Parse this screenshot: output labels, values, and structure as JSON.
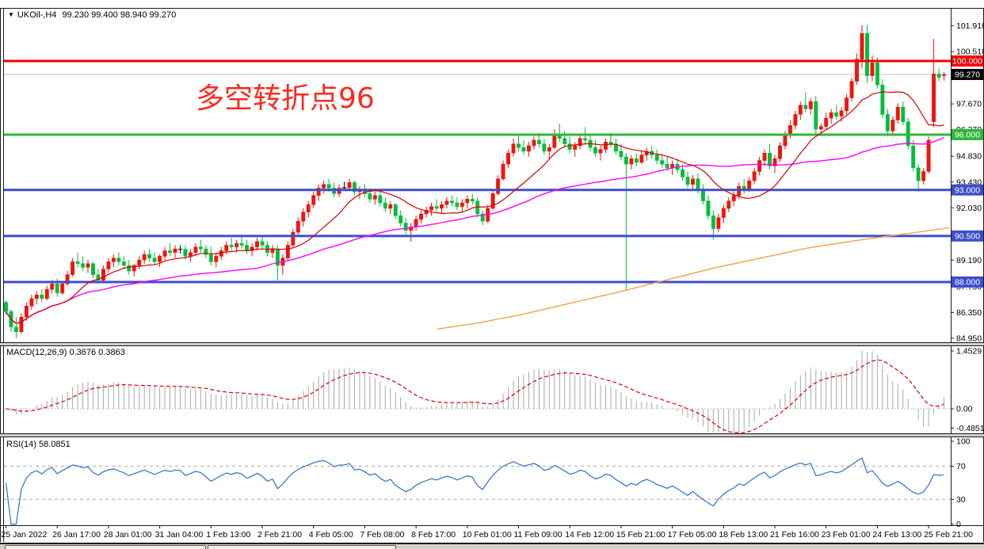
{
  "window": {
    "symbol_period": "UKOil-,H4",
    "ohlc": "99.230 99.400 98.940 99.270"
  },
  "annotation": {
    "text": "多空转折点96",
    "color": "#fb2a1c"
  },
  "colors": {
    "up": "#f2130e",
    "down": "#00be3c",
    "doji": "#111111",
    "hline_red": "#f50000",
    "hline_green": "#2fb83a",
    "hline_blue": "#3d4ecc",
    "current_line": "#c0c0c0",
    "current_badge_bg": "#000000",
    "ma_fast": "#d40000",
    "ma_slow": "#ff00ff",
    "ma_long": "#f2a24c",
    "macd_hist": "#a8a8a8",
    "macd_signal": "#e00000",
    "rsi_line": "#3c78d2",
    "level_dash": "#ababab",
    "axis_text": "#000000"
  },
  "chart_data": {
    "type": "candlestick",
    "symbol": "UKOil-",
    "timeframe": "H4",
    "title": "UKOil-,H4 99.230 99.400 98.940 99.270",
    "x_labels": [
      "25 Jan 2022",
      "26 Jan 17:00",
      "28 Jan 01:00",
      "31 Jan 04:00",
      "1 Feb 13:00",
      "2 Feb 21:00",
      "4 Feb 05:00",
      "7 Feb 08:00",
      "8 Feb 17:00",
      "10 Feb 01:00",
      "11 Feb 09:00",
      "14 Feb 12:00",
      "15 Feb 21:00",
      "17 Feb 05:00",
      "18 Feb 13:00",
      "21 Feb 16:00",
      "23 Feb 01:00",
      "24 Feb 13:00",
      "25 Feb 21:00"
    ],
    "candles_per_label": 10,
    "price_axis": {
      "ticks": [
        "101.910",
        "100.510",
        "99.110",
        "97.670",
        "96.270",
        "94.830",
        "93.430",
        "92.030",
        "90.610",
        "89.190",
        "87.750",
        "86.350",
        "84.950"
      ],
      "current_price": {
        "value": 99.27,
        "label": "99.270"
      }
    },
    "h_lines": [
      {
        "value": 100.0,
        "label": "100.000",
        "color_key": "hline_red"
      },
      {
        "value": 96.0,
        "label": "96.000",
        "color_key": "hline_green"
      },
      {
        "value": 93.0,
        "label": "93.000",
        "color_key": "hline_blue"
      },
      {
        "value": 90.5,
        "label": "90.500",
        "color_key": "hline_blue"
      },
      {
        "value": 88.0,
        "label": "88.000",
        "color_key": "hline_blue"
      }
    ],
    "moving_averages": {
      "fast": {
        "period": 13,
        "color_key": "ma_fast"
      },
      "slow": {
        "period": 50,
        "color_key": "ma_slow"
      },
      "long_points": [
        [
          552,
          85.45
        ],
        [
          600,
          85.75
        ],
        [
          660,
          86.25
        ],
        [
          720,
          86.85
        ],
        [
          780,
          87.45
        ],
        [
          840,
          88.1
        ],
        [
          900,
          88.75
        ],
        [
          960,
          89.3
        ],
        [
          1020,
          89.85
        ],
        [
          1080,
          90.25
        ],
        [
          1140,
          90.6
        ],
        [
          1198,
          90.95
        ]
      ]
    },
    "candles": [
      [
        86.9,
        87.0,
        86.2,
        86.4
      ],
      [
        86.4,
        86.5,
        85.3,
        85.55
      ],
      [
        85.55,
        86.1,
        84.95,
        85.3
      ],
      [
        85.3,
        86.3,
        85.2,
        86.1
      ],
      [
        86.1,
        86.9,
        85.9,
        86.7
      ],
      [
        86.7,
        87.3,
        86.5,
        87.1
      ],
      [
        87.1,
        87.5,
        86.8,
        87.3
      ],
      [
        87.3,
        87.6,
        86.9,
        87.1
      ],
      [
        87.1,
        87.8,
        87.0,
        87.6
      ],
      [
        87.6,
        88.1,
        87.4,
        87.9
      ],
      [
        87.9,
        88.2,
        87.2,
        87.4
      ],
      [
        87.4,
        88.0,
        87.3,
        87.9
      ],
      [
        87.9,
        88.6,
        87.8,
        88.4
      ],
      [
        88.4,
        89.3,
        88.3,
        89.1
      ],
      [
        89.1,
        89.6,
        88.8,
        89.0
      ],
      [
        89.0,
        89.4,
        88.6,
        88.8
      ],
      [
        88.8,
        89.2,
        88.5,
        89.0
      ],
      [
        89.0,
        89.1,
        88.2,
        88.4
      ],
      [
        88.4,
        88.7,
        87.9,
        88.1
      ],
      [
        88.1,
        88.9,
        88.0,
        88.7
      ],
      [
        88.7,
        89.3,
        88.5,
        89.1
      ],
      [
        89.1,
        89.5,
        88.8,
        89.3
      ],
      [
        89.3,
        89.6,
        88.9,
        89.1
      ],
      [
        89.1,
        89.4,
        88.7,
        88.9
      ],
      [
        88.9,
        89.2,
        88.4,
        88.6
      ],
      [
        88.6,
        89.0,
        88.3,
        88.9
      ],
      [
        88.9,
        89.4,
        88.7,
        89.2
      ],
      [
        89.2,
        89.7,
        89.0,
        89.5
      ],
      [
        89.5,
        89.8,
        89.1,
        89.3
      ],
      [
        89.3,
        89.6,
        88.9,
        89.1
      ],
      [
        89.1,
        89.5,
        88.8,
        89.4
      ],
      [
        89.4,
        89.9,
        89.2,
        89.7
      ],
      [
        89.7,
        90.1,
        89.4,
        89.6
      ],
      [
        89.6,
        90.0,
        89.3,
        89.8
      ],
      [
        89.8,
        90.0,
        89.55,
        89.78
      ],
      [
        89.78,
        90.0,
        89.2,
        89.4
      ],
      [
        89.4,
        89.8,
        89.1,
        89.6
      ],
      [
        89.6,
        90.1,
        89.4,
        89.9
      ],
      [
        89.9,
        90.3,
        89.6,
        89.8
      ],
      [
        89.8,
        90.0,
        89.3,
        89.5
      ],
      [
        89.5,
        89.9,
        88.9,
        89.1
      ],
      [
        89.1,
        89.6,
        88.8,
        89.4
      ],
      [
        89.4,
        89.9,
        89.2,
        89.7
      ],
      [
        89.7,
        90.2,
        89.5,
        90.0
      ],
      [
        90.0,
        90.4,
        89.7,
        89.9
      ],
      [
        89.9,
        90.3,
        89.6,
        90.1
      ],
      [
        90.1,
        90.45,
        89.8,
        90.0
      ],
      [
        90.0,
        90.3,
        89.5,
        89.7
      ],
      [
        89.7,
        90.1,
        89.4,
        89.9
      ],
      [
        89.9,
        90.4,
        89.7,
        90.2
      ],
      [
        90.2,
        90.45,
        89.8,
        90.0
      ],
      [
        90.0,
        90.2,
        89.4,
        89.6
      ],
      [
        89.6,
        90.0,
        89.3,
        89.8
      ],
      [
        89.8,
        90.0,
        88.1,
        88.9
      ],
      [
        88.9,
        89.5,
        88.4,
        89.3
      ],
      [
        89.3,
        90.2,
        89.2,
        90.0
      ],
      [
        90.0,
        90.9,
        89.9,
        90.7
      ],
      [
        90.7,
        91.5,
        90.5,
        91.3
      ],
      [
        91.3,
        92.0,
        91.0,
        91.8
      ],
      [
        91.8,
        92.4,
        91.5,
        92.2
      ],
      [
        92.2,
        92.9,
        92.0,
        92.7
      ],
      [
        92.7,
        93.3,
        92.4,
        93.1
      ],
      [
        93.1,
        93.5,
        92.8,
        93.3
      ],
      [
        93.3,
        93.6,
        92.9,
        93.1
      ],
      [
        93.1,
        93.4,
        92.6,
        92.8
      ],
      [
        92.8,
        93.3,
        92.6,
        93.1
      ],
      [
        93.1,
        93.45,
        92.95,
        93.12
      ],
      [
        93.12,
        93.6,
        93.0,
        93.4
      ],
      [
        93.4,
        93.5,
        92.7,
        92.9
      ],
      [
        92.9,
        93.2,
        92.5,
        93.0
      ],
      [
        93.0,
        93.3,
        92.6,
        92.8
      ],
      [
        92.8,
        93.0,
        92.3,
        92.5
      ],
      [
        92.5,
        92.9,
        92.2,
        92.7
      ],
      [
        92.7,
        92.9,
        92.1,
        92.3
      ],
      [
        92.3,
        92.6,
        91.8,
        92.0
      ],
      [
        92.0,
        92.4,
        91.7,
        92.2
      ],
      [
        92.2,
        92.3,
        91.4,
        91.6
      ],
      [
        91.6,
        91.9,
        91.0,
        91.2
      ],
      [
        91.2,
        91.5,
        90.6,
        90.8
      ],
      [
        90.8,
        91.2,
        90.2,
        91.0
      ],
      [
        91.0,
        91.6,
        90.8,
        91.4
      ],
      [
        91.4,
        91.9,
        91.2,
        91.7
      ],
      [
        91.7,
        92.1,
        91.5,
        91.9
      ],
      [
        91.9,
        92.3,
        91.6,
        92.1
      ],
      [
        92.1,
        92.5,
        91.8,
        92.0
      ],
      [
        92.0,
        92.4,
        91.7,
        92.2
      ],
      [
        92.2,
        92.6,
        92.0,
        92.4
      ],
      [
        92.4,
        92.7,
        92.1,
        92.3
      ],
      [
        92.3,
        92.6,
        91.9,
        92.1
      ],
      [
        92.1,
        92.5,
        91.8,
        92.3
      ],
      [
        92.3,
        92.7,
        92.0,
        92.5
      ],
      [
        92.5,
        92.8,
        92.2,
        92.4
      ],
      [
        92.4,
        92.6,
        91.5,
        91.7
      ],
      [
        91.7,
        91.9,
        91.1,
        91.3
      ],
      [
        91.3,
        92.2,
        91.2,
        92.0
      ],
      [
        92.0,
        93.0,
        91.9,
        92.8
      ],
      [
        92.8,
        93.8,
        92.7,
        93.6
      ],
      [
        93.6,
        94.6,
        93.5,
        94.4
      ],
      [
        94.4,
        95.2,
        94.2,
        95.0
      ],
      [
        95.0,
        95.8,
        94.8,
        95.5
      ],
      [
        95.5,
        96.0,
        95.1,
        95.3
      ],
      [
        95.3,
        95.7,
        94.9,
        95.1
      ],
      [
        95.1,
        95.6,
        94.8,
        95.4
      ],
      [
        95.4,
        95.9,
        95.2,
        95.7
      ],
      [
        95.7,
        96.1,
        95.3,
        95.5
      ],
      [
        95.5,
        95.8,
        94.9,
        95.1
      ],
      [
        95.1,
        95.5,
        94.7,
        95.3
      ],
      [
        95.3,
        96.3,
        95.2,
        96.0
      ],
      [
        96.0,
        96.6,
        95.6,
        95.8
      ],
      [
        95.8,
        96.2,
        95.3,
        95.5
      ],
      [
        95.5,
        95.9,
        95.0,
        95.2
      ],
      [
        95.2,
        95.6,
        94.8,
        95.4
      ],
      [
        95.4,
        96.0,
        95.2,
        95.8
      ],
      [
        95.8,
        96.4,
        95.5,
        95.7
      ],
      [
        95.7,
        96.0,
        95.1,
        95.3
      ],
      [
        95.3,
        95.7,
        94.8,
        95.0
      ],
      [
        95.0,
        95.4,
        94.6,
        95.2
      ],
      [
        95.2,
        95.8,
        95.0,
        95.6
      ],
      [
        95.6,
        96.1,
        95.3,
        95.5
      ],
      [
        95.5,
        95.8,
        94.9,
        95.1
      ],
      [
        95.1,
        95.5,
        94.6,
        94.8
      ],
      [
        94.8,
        95.0,
        87.5,
        94.4
      ],
      [
        94.4,
        94.9,
        94.1,
        94.7
      ],
      [
        94.7,
        95.0,
        94.3,
        94.5
      ],
      [
        94.5,
        95.1,
        94.4,
        94.9
      ],
      [
        94.9,
        95.3,
        94.6,
        95.1
      ],
      [
        95.1,
        95.4,
        94.7,
        94.9
      ],
      [
        94.9,
        95.2,
        94.4,
        94.6
      ],
      [
        94.6,
        94.9,
        94.2,
        94.4
      ],
      [
        94.4,
        94.8,
        94.0,
        94.2
      ],
      [
        94.2,
        94.6,
        93.8,
        94.4
      ],
      [
        94.4,
        94.7,
        93.9,
        94.1
      ],
      [
        94.1,
        94.4,
        93.5,
        93.7
      ],
      [
        93.7,
        94.0,
        93.1,
        93.3
      ],
      [
        93.3,
        93.8,
        93.0,
        93.6
      ],
      [
        93.6,
        93.9,
        92.8,
        93.0
      ],
      [
        93.0,
        93.3,
        92.2,
        92.4
      ],
      [
        92.4,
        92.7,
        91.4,
        91.6
      ],
      [
        91.6,
        91.9,
        90.3,
        90.9
      ],
      [
        90.9,
        91.7,
        90.7,
        91.5
      ],
      [
        91.5,
        92.2,
        91.2,
        92.0
      ],
      [
        92.0,
        92.6,
        91.8,
        92.4
      ],
      [
        92.4,
        92.9,
        92.1,
        92.7
      ],
      [
        92.7,
        93.4,
        92.5,
        93.2
      ],
      [
        93.2,
        93.6,
        92.8,
        93.0
      ],
      [
        93.0,
        93.7,
        92.9,
        93.5
      ],
      [
        93.5,
        94.2,
        93.3,
        94.0
      ],
      [
        94.0,
        94.8,
        93.8,
        94.6
      ],
      [
        94.6,
        95.2,
        94.3,
        95.0
      ],
      [
        95.0,
        95.5,
        94.1,
        94.3
      ],
      [
        94.3,
        94.9,
        93.9,
        94.7
      ],
      [
        94.7,
        95.6,
        94.5,
        95.4
      ],
      [
        95.4,
        96.2,
        95.2,
        96.0
      ],
      [
        96.0,
        96.8,
        95.8,
        96.5
      ],
      [
        96.5,
        97.3,
        96.3,
        97.1
      ],
      [
        97.1,
        97.8,
        96.8,
        97.6
      ],
      [
        97.6,
        98.3,
        97.2,
        97.4
      ],
      [
        97.4,
        98.0,
        97.1,
        97.8
      ],
      [
        97.8,
        98.1,
        96.0,
        96.3
      ],
      [
        96.3,
        96.6,
        96.05,
        96.45
      ],
      [
        96.45,
        97.2,
        96.3,
        96.9
      ],
      [
        96.9,
        97.4,
        96.6,
        97.2
      ],
      [
        97.2,
        97.6,
        96.8,
        97.0
      ],
      [
        97.0,
        97.5,
        96.7,
        97.3
      ],
      [
        97.3,
        98.2,
        97.1,
        98.0
      ],
      [
        98.0,
        99.1,
        97.8,
        98.9
      ],
      [
        98.9,
        100.4,
        98.7,
        100.1
      ],
      [
        100.1,
        101.95,
        99.6,
        101.5
      ],
      [
        101.5,
        101.95,
        98.8,
        99.2
      ],
      [
        99.2,
        100.3,
        98.9,
        99.9
      ],
      [
        99.9,
        100.2,
        98.5,
        98.7
      ],
      [
        98.7,
        99.0,
        96.9,
        97.1
      ],
      [
        97.1,
        97.4,
        95.9,
        96.2
      ],
      [
        96.2,
        97.0,
        96.0,
        96.8
      ],
      [
        96.8,
        97.7,
        96.6,
        97.5
      ],
      [
        97.5,
        97.8,
        96.5,
        96.7
      ],
      [
        96.7,
        96.9,
        95.2,
        95.4
      ],
      [
        95.4,
        95.7,
        94.0,
        94.2
      ],
      [
        94.2,
        94.4,
        92.9,
        93.5
      ],
      [
        93.5,
        94.2,
        93.3,
        94.0
      ],
      [
        94.0,
        95.9,
        93.9,
        95.7
      ],
      [
        96.7,
        101.2,
        96.4,
        99.3
      ],
      [
        99.3,
        99.6,
        98.9,
        99.1
      ],
      [
        99.23,
        99.4,
        98.94,
        99.27
      ]
    ],
    "indicators": {
      "macd": {
        "label": "MACD(12,26,9) 0.3676 0.3863",
        "name": "MACD",
        "params": "12,26,9",
        "value_main": "0.3676",
        "value_signal": "0.3863",
        "axis_ticks": [
          "1.4529",
          "0.00",
          "-0.4851"
        ],
        "fast": 12,
        "slow": 26,
        "signal": 9
      },
      "rsi": {
        "label": "RSI(14) 58.0851",
        "name": "RSI",
        "params": "14",
        "value": "58.0851",
        "axis_ticks": [
          "100",
          "70",
          "30",
          "0"
        ],
        "levels": [
          70,
          30
        ],
        "period": 14
      }
    }
  }
}
